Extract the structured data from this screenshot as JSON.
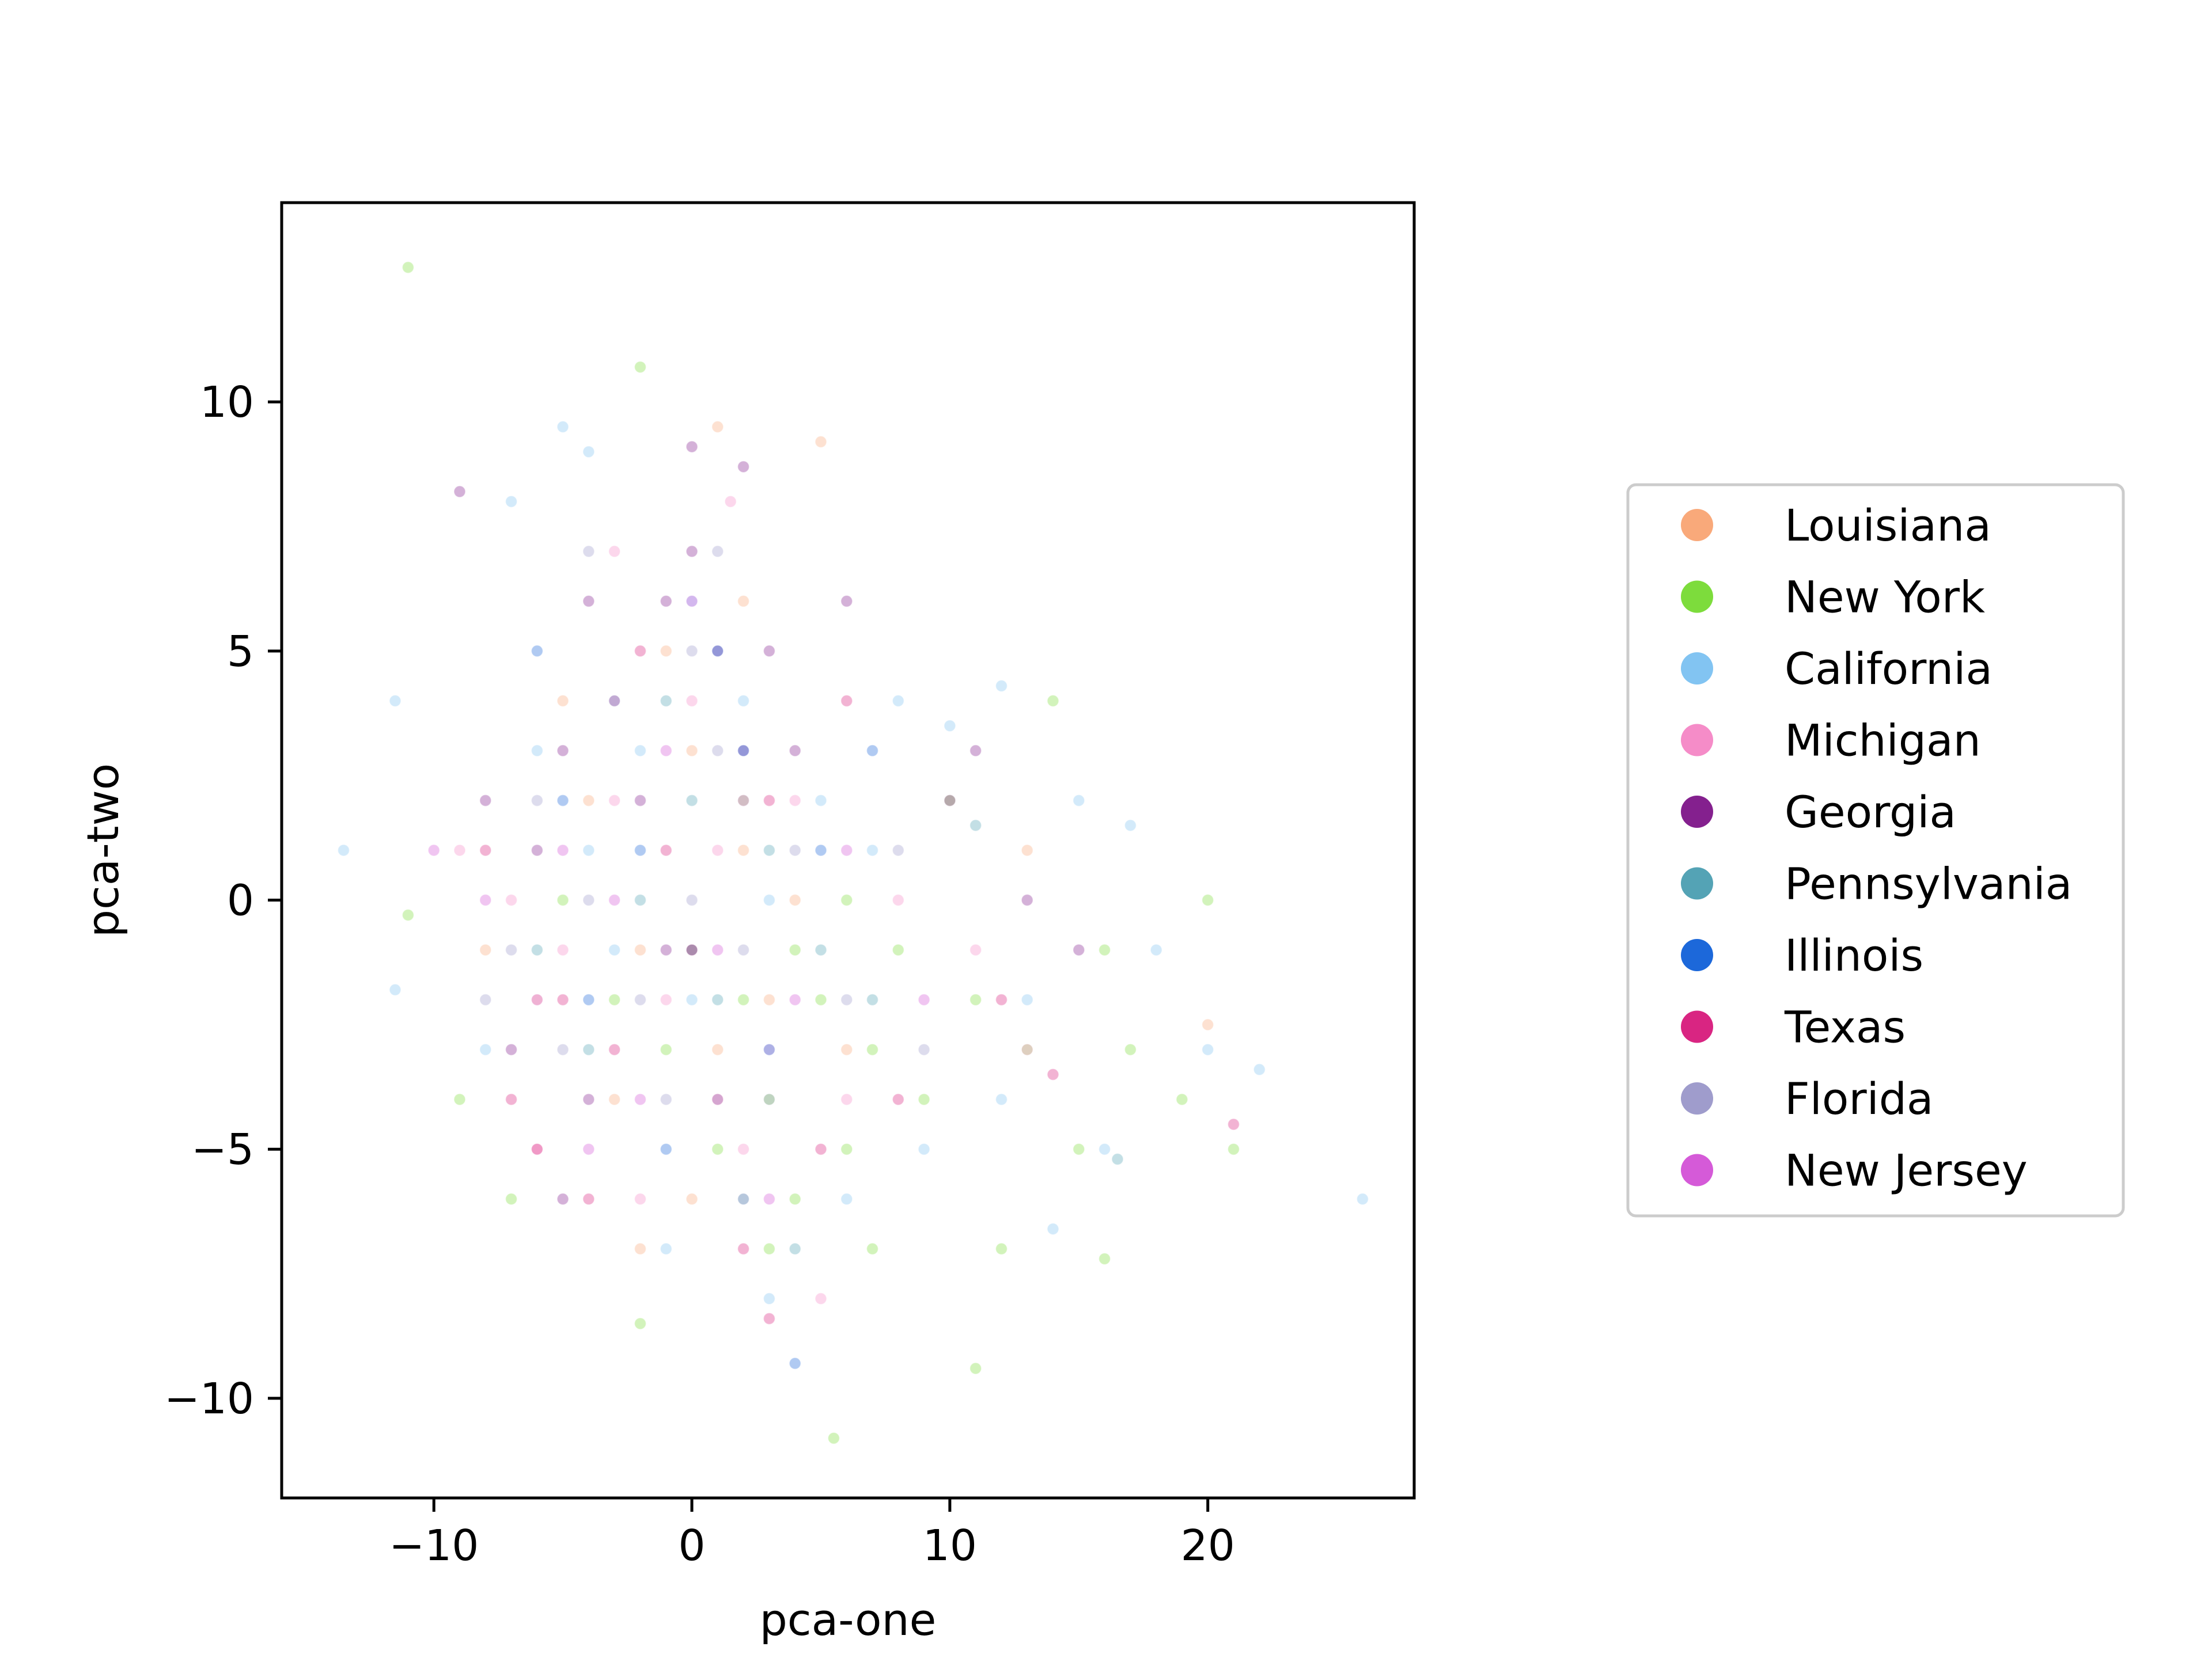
{
  "chart_data": {
    "type": "scatter",
    "title": "",
    "xlabel": "pca-one",
    "ylabel": "pca-two",
    "xlim": [
      -15.9,
      28.0
    ],
    "ylim": [
      -12.0,
      14.0
    ],
    "x_ticks": [
      {
        "value": -10,
        "label": "−10"
      },
      {
        "value": 0,
        "label": "0"
      },
      {
        "value": 10,
        "label": "10"
      },
      {
        "value": 20,
        "label": "20"
      }
    ],
    "y_ticks": [
      {
        "value": -10,
        "label": "−10"
      },
      {
        "value": -5,
        "label": "−5"
      },
      {
        "value": 0,
        "label": "0"
      },
      {
        "value": 5,
        "label": "5"
      },
      {
        "value": 10,
        "label": "10"
      }
    ],
    "grid": false,
    "legend_position": "right",
    "point_alpha": 0.35,
    "series": [
      {
        "name": "Louisiana",
        "color": "#f9a97a",
        "points": [
          [
            -4,
            2
          ],
          [
            -2,
            -1
          ],
          [
            0,
            3
          ],
          [
            1,
            -3
          ],
          [
            2,
            1
          ],
          [
            -6,
            -2
          ],
          [
            3,
            -2
          ],
          [
            -1,
            5
          ],
          [
            4,
            0
          ],
          [
            -3,
            -4
          ],
          [
            1,
            9.5
          ],
          [
            5,
            9.2
          ],
          [
            -5,
            4
          ],
          [
            0,
            -6
          ],
          [
            -8,
            -1
          ],
          [
            13,
            1
          ],
          [
            20,
            -2.5
          ],
          [
            6,
            -3
          ],
          [
            -2,
            -7
          ],
          [
            2,
            6
          ]
        ]
      },
      {
        "name": "New York",
        "color": "#7ddc3c",
        "points": [
          [
            -1,
            -3
          ],
          [
            2,
            -2
          ],
          [
            4,
            -1
          ],
          [
            3,
            -4
          ],
          [
            5,
            -2
          ],
          [
            6,
            0
          ],
          [
            1,
            -5
          ],
          [
            -3,
            -2
          ],
          [
            7,
            -3
          ],
          [
            8,
            -1
          ],
          [
            4,
            -6
          ],
          [
            0,
            -1
          ],
          [
            -5,
            0
          ],
          [
            2,
            2
          ],
          [
            6,
            -5
          ],
          [
            9,
            -4
          ],
          [
            11,
            -2
          ],
          [
            13,
            -3
          ],
          [
            15,
            -5
          ],
          [
            17,
            -3
          ],
          [
            19,
            -4
          ],
          [
            21,
            -5
          ],
          [
            -11,
            -0.3
          ],
          [
            -2,
            -8.5
          ],
          [
            5.5,
            -10.8
          ],
          [
            11,
            -9.4
          ],
          [
            -11,
            12.7
          ],
          [
            -2,
            10.7
          ],
          [
            3,
            -7
          ],
          [
            7,
            -7
          ],
          [
            -7,
            -6
          ],
          [
            14,
            4
          ],
          [
            16,
            -1
          ],
          [
            20,
            0
          ],
          [
            -9,
            -4
          ],
          [
            10,
            2
          ],
          [
            12,
            -7
          ],
          [
            16,
            -7.2
          ]
        ]
      },
      {
        "name": "California",
        "color": "#82c4f2",
        "points": [
          [
            -4,
            1
          ],
          [
            -2,
            3
          ],
          [
            0,
            -2
          ],
          [
            2,
            4
          ],
          [
            -6,
            3
          ],
          [
            3,
            0
          ],
          [
            1,
            -4
          ],
          [
            -3,
            -1
          ],
          [
            5,
            2
          ],
          [
            7,
            1
          ],
          [
            -7,
            8
          ],
          [
            -5,
            9.5
          ],
          [
            -4,
            9
          ],
          [
            -13.5,
            1
          ],
          [
            -11.5,
            -1.8
          ],
          [
            -11.5,
            4
          ],
          [
            8,
            4
          ],
          [
            10,
            3.5
          ],
          [
            12,
            4.3
          ],
          [
            15,
            2
          ],
          [
            17,
            1.5
          ],
          [
            18,
            -1
          ],
          [
            20,
            -3
          ],
          [
            22,
            -3.4
          ],
          [
            26,
            -6
          ],
          [
            14,
            -6.6
          ],
          [
            12,
            -4
          ],
          [
            9,
            -5
          ],
          [
            -1,
            -7
          ],
          [
            3,
            -8
          ],
          [
            0,
            6
          ],
          [
            -8,
            -3
          ],
          [
            6,
            -6
          ],
          [
            16,
            -5
          ],
          [
            13,
            -2
          ]
        ]
      },
      {
        "name": "Michigan",
        "color": "#f58cc8",
        "points": [
          [
            -3,
            2
          ],
          [
            -1,
            -2
          ],
          [
            1,
            1
          ],
          [
            3,
            -3
          ],
          [
            -5,
            -1
          ],
          [
            0,
            4
          ],
          [
            2,
            -5
          ],
          [
            -7,
            0
          ],
          [
            4,
            2
          ],
          [
            -2,
            -6
          ],
          [
            6,
            -4
          ],
          [
            8,
            0
          ],
          [
            -9,
            1
          ],
          [
            11,
            -1
          ],
          [
            13,
            -3
          ],
          [
            1.5,
            8
          ],
          [
            -3,
            7
          ],
          [
            -6,
            -5
          ],
          [
            5,
            -8
          ]
        ]
      },
      {
        "name": "Georgia",
        "color": "#84208e",
        "points": [
          [
            -3,
            4
          ],
          [
            -1,
            6
          ],
          [
            1,
            5
          ],
          [
            -5,
            3
          ],
          [
            -4,
            6
          ],
          [
            0,
            7
          ],
          [
            2,
            3
          ],
          [
            -6,
            1
          ],
          [
            -2,
            2
          ],
          [
            3,
            5
          ],
          [
            -8,
            2
          ],
          [
            -7,
            -3
          ],
          [
            0,
            9.1
          ],
          [
            2,
            8.7
          ],
          [
            -9,
            8.2
          ],
          [
            -4,
            -4
          ],
          [
            -1,
            -1
          ],
          [
            4,
            3
          ],
          [
            6,
            6
          ],
          [
            -5,
            -6
          ],
          [
            10,
            2
          ],
          [
            11,
            3
          ],
          [
            13,
            0
          ],
          [
            15,
            -1
          ]
        ]
      },
      {
        "name": "Pennsylvania",
        "color": "#54a3b5",
        "points": [
          [
            -2,
            0
          ],
          [
            1,
            -2
          ],
          [
            3,
            1
          ],
          [
            -4,
            -3
          ],
          [
            0,
            2
          ],
          [
            5,
            -1
          ],
          [
            -6,
            -1
          ],
          [
            2,
            -6
          ],
          [
            -1,
            4
          ],
          [
            7,
            -2
          ],
          [
            4,
            -7
          ],
          [
            11,
            1.5
          ],
          [
            16.5,
            -5.2
          ]
        ]
      },
      {
        "name": "Illinois",
        "color": "#1c68da",
        "points": [
          [
            -2,
            1
          ],
          [
            0,
            -1
          ],
          [
            2,
            3
          ],
          [
            -4,
            -2
          ],
          [
            1,
            5
          ],
          [
            3,
            -3
          ],
          [
            -5,
            2
          ],
          [
            5,
            1
          ],
          [
            -1,
            -5
          ],
          [
            4,
            -9.3
          ],
          [
            -6,
            5
          ],
          [
            7,
            3
          ]
        ]
      },
      {
        "name": "Texas",
        "color": "#d92582",
        "points": [
          [
            -3,
            -3
          ],
          [
            -1,
            1
          ],
          [
            1,
            -4
          ],
          [
            3,
            2
          ],
          [
            -5,
            -2
          ],
          [
            0,
            -1
          ],
          [
            -7,
            -4
          ],
          [
            2,
            -7
          ],
          [
            5,
            -5
          ],
          [
            -2,
            5
          ],
          [
            6,
            4
          ],
          [
            -6,
            -5
          ],
          [
            8,
            -4
          ],
          [
            -8,
            1
          ],
          [
            12,
            -2
          ],
          [
            14,
            -3.5
          ],
          [
            21,
            -4.5
          ],
          [
            3,
            -8.4
          ],
          [
            -4,
            -6
          ]
        ]
      },
      {
        "name": "Florida",
        "color": "#9f9ccc",
        "points": [
          [
            -2,
            -2
          ],
          [
            0,
            0
          ],
          [
            2,
            -1
          ],
          [
            -4,
            0
          ],
          [
            1,
            3
          ],
          [
            -3,
            4
          ],
          [
            3,
            -4
          ],
          [
            -5,
            -3
          ],
          [
            4,
            1
          ],
          [
            -1,
            -4
          ],
          [
            6,
            -2
          ],
          [
            -6,
            2
          ],
          [
            0,
            5
          ],
          [
            2,
            -6
          ],
          [
            -7,
            -1
          ],
          [
            8,
            1
          ],
          [
            -8,
            -2
          ],
          [
            9,
            -3
          ],
          [
            -4,
            7
          ],
          [
            1,
            7
          ]
        ]
      },
      {
        "name": "New Jersey",
        "color": "#d55ad8",
        "points": [
          [
            -3,
            0
          ],
          [
            -1,
            3
          ],
          [
            1,
            -1
          ],
          [
            -5,
            1
          ],
          [
            2,
            2
          ],
          [
            -2,
            -4
          ],
          [
            4,
            -2
          ],
          [
            -6,
            -2
          ],
          [
            0,
            6
          ],
          [
            3,
            -6
          ],
          [
            -8,
            0
          ],
          [
            6,
            1
          ],
          [
            -4,
            -5
          ],
          [
            9,
            -2
          ],
          [
            -10,
            1
          ]
        ]
      }
    ]
  }
}
